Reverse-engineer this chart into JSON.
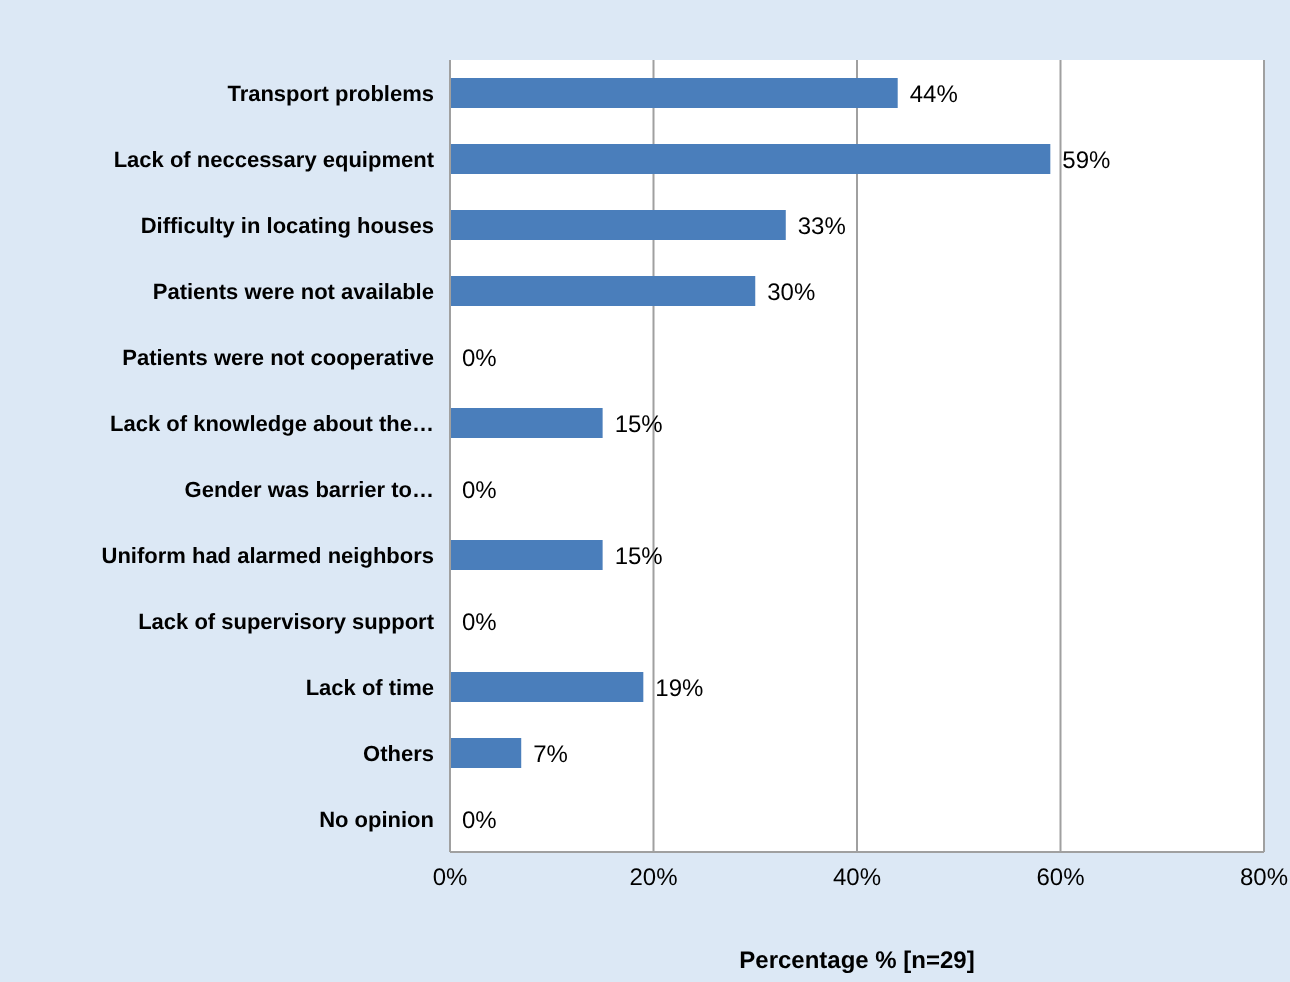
{
  "chart_data": {
    "type": "bar",
    "orientation": "horizontal",
    "xlabel": "Percentage % [n=29]",
    "categories": [
      "Transport problems",
      "Lack of neccessary equipment",
      "Difficulty in locating houses",
      "Patients were not available",
      "Patients were not cooperative",
      "Lack of knowledge about the…",
      "Gender was barrier to…",
      "Uniform had alarmed neighbors",
      "Lack of supervisory support",
      "Lack of time",
      "Others",
      "No opinion"
    ],
    "values": [
      44,
      59,
      33,
      30,
      0,
      15,
      0,
      15,
      0,
      19,
      7,
      0
    ],
    "value_labels": [
      "44%",
      "59%",
      "33%",
      "30%",
      "0%",
      "15%",
      "0%",
      "15%",
      "0%",
      "19%",
      "7%",
      "0%"
    ],
    "color": "#4a7ebb",
    "xlim": [
      0,
      80
    ],
    "xticks": [
      {
        "value": 0,
        "label": "0%"
      },
      {
        "value": 20,
        "label": "20%"
      },
      {
        "value": 40,
        "label": "40%"
      },
      {
        "value": 60,
        "label": "60%"
      },
      {
        "value": 80,
        "label": "80%"
      }
    ],
    "grid": "x"
  }
}
